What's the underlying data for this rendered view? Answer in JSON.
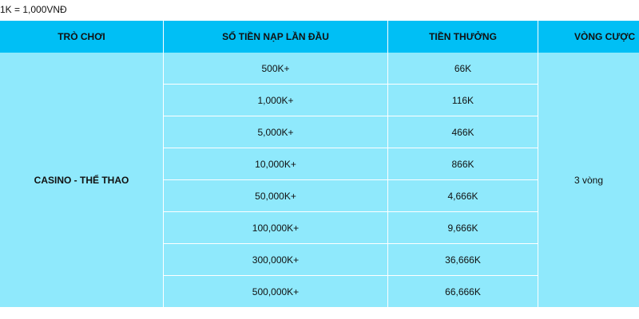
{
  "note": "1K = 1,000VNĐ",
  "table": {
    "headers": [
      "TRÒ CHƠI",
      "SỐ TIỀN NẠP LẦN ĐẦU",
      "TIỀN THƯỞNG",
      "VÒNG CƯỢC"
    ],
    "game": "CASINO - THỂ THAO",
    "wager": "3 vòng",
    "rows": [
      {
        "deposit": "500K+",
        "bonus": "66K"
      },
      {
        "deposit": "1,000K+",
        "bonus": "116K"
      },
      {
        "deposit": "5,000K+",
        "bonus": "466K"
      },
      {
        "deposit": "10,000K+",
        "bonus": "866K"
      },
      {
        "deposit": "50,000K+",
        "bonus": "4,666K"
      },
      {
        "deposit": "100,000K+",
        "bonus": "9,666K"
      },
      {
        "deposit": "300,000K+",
        "bonus": "36,666K"
      },
      {
        "deposit": "500,000K+",
        "bonus": "66,666K"
      }
    ]
  }
}
